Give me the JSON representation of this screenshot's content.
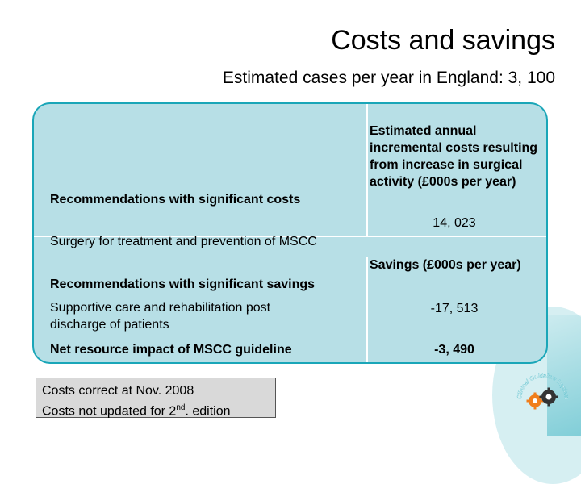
{
  "title": "Costs and savings",
  "subtitle": "Estimated cases per year in England: 3, 100",
  "table": {
    "costs_header": "Recommendations with significant costs",
    "costs_column_header": "Estimated annual incremental costs resulting from increase in surgical activity (£000s per year)",
    "costs_value": "14, 023",
    "costs_row_label": "Surgery for treatment and prevention of MSCC",
    "savings_header": "Recommendations with significant savings",
    "savings_column_header": "Savings (£000s per year)",
    "savings_row_label": "Supportive care and rehabilitation post discharge of patients",
    "savings_value": "-17, 513",
    "net_label": "Net resource impact of MSCC guideline",
    "net_value": "-3, 490"
  },
  "note": {
    "line1": "Costs correct at  Nov. 2008",
    "line2_prefix": "Costs not updated for 2",
    "line2_sup": "nd",
    "line2_suffix": ". edition"
  },
  "logo": {
    "text": "Clinical Guideline Implementation Tools",
    "icon": "gear-icon"
  },
  "colors": {
    "panel": "#b7dfe6",
    "border": "#1aa6b8",
    "note": "#d9d9d9",
    "gear_orange": "#f07e1c"
  }
}
